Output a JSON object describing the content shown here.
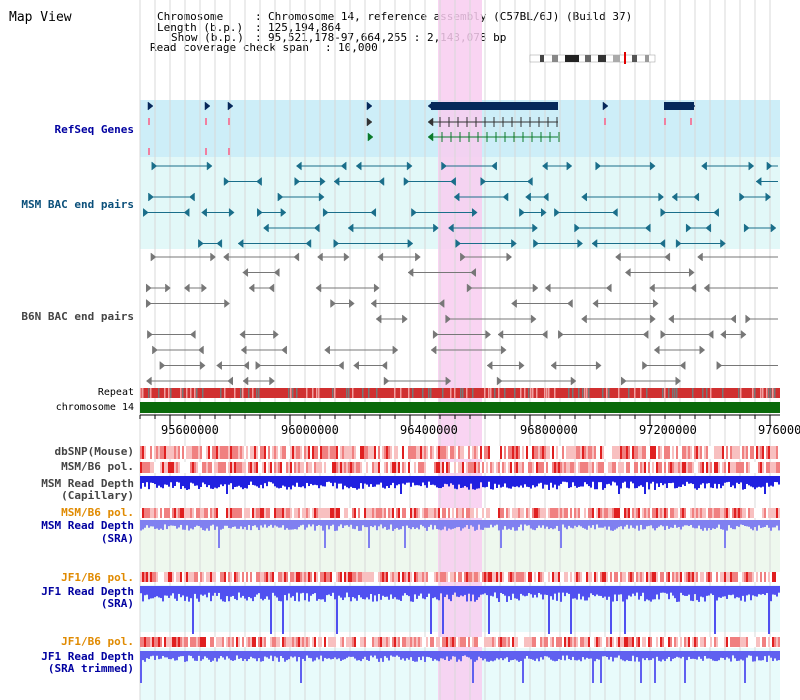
{
  "view": {
    "title": "Map View"
  },
  "info": {
    "chromosome_key": "Chromosome",
    "chromosome_value": "Chromosome 14, reference assembly (C57BL/6J) (Build 37)",
    "length_key": "Length (b.p.)",
    "length_value": "125,194,864",
    "show_key": "Show (b.p.)",
    "show_value": "95,521,178-97,664,255 : 2,143,078 bp",
    "span_key": "Read coverage check span",
    "span_value": "10,000"
  },
  "tracks": {
    "refseq": "RefSeq Genes",
    "msm_bac": "MSM BAC end pairs",
    "b6n_bac": "B6N BAC end pairs",
    "repeat": "Repeat",
    "chromosome": "chromosome 14",
    "dbsnp": "dbSNP(Mouse)",
    "msm_b6_pol": "MSM/B6 pol.",
    "msm_depth_cap_1": "MSM Read Depth",
    "msm_depth_cap_2": "(Capillary)",
    "msm_b6_pol_2": "MSM/B6 pol.",
    "msm_depth_sra_1": "MSM Read Depth",
    "msm_depth_sra_2": "(SRA)",
    "jf1_b6_pol": "JF1/B6 pol.",
    "jf1_depth_sra_1": "JF1 Read Depth",
    "jf1_depth_sra_2": "(SRA)",
    "jf1_b6_pol_2": "JF1/B6 pol.",
    "jf1_depth_trim_1": "JF1 Read Depth",
    "jf1_depth_trim_2": "(SRA trimmed)"
  },
  "axis": {
    "ticks": [
      "95600000",
      "96000000",
      "96400000",
      "96800000",
      "97200000",
      "976000"
    ]
  },
  "colors": {
    "refseq_bg": "#cdeef8",
    "bac_bg": "#e2f8f8",
    "highlight": "#f8cdf0",
    "chromosome": "#0a6a0a",
    "depth": "#2020f0"
  }
}
